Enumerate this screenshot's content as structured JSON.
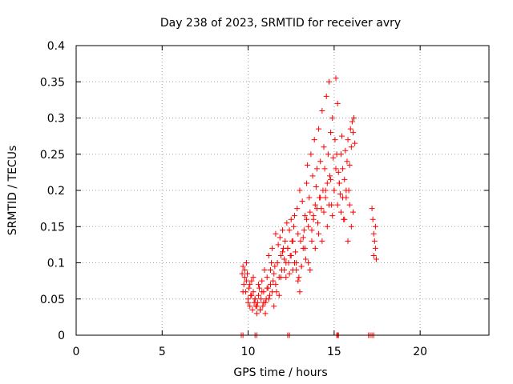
{
  "chart_data": {
    "type": "scatter",
    "title": "Day 238 of 2023, SRMTID for receiver avry",
    "xlabel": "GPS time / hours",
    "ylabel": "SRMTID / TECUs",
    "xlim": [
      0,
      24
    ],
    "ylim": [
      0,
      0.4
    ],
    "x_ticks": [
      0,
      5,
      10,
      15,
      20
    ],
    "x_tick_labels": [
      "0",
      "5",
      "10",
      "15",
      "20"
    ],
    "y_ticks": [
      0,
      0.05,
      0.1,
      0.15,
      0.2,
      0.25,
      0.3,
      0.35,
      0.4
    ],
    "y_tick_labels": [
      "0",
      "0.05",
      "0.1",
      "0.15",
      "0.2",
      "0.25",
      "0.3",
      "0.35",
      "0.4"
    ],
    "grid": true,
    "marker": "+",
    "color": "#ff0000",
    "series": [
      {
        "name": "SRMTID",
        "x": [
          9.65,
          9.7,
          9.75,
          9.8,
          9.85,
          9.9,
          9.95,
          10.0,
          10.05,
          10.1,
          10.15,
          10.2,
          10.25,
          10.3,
          10.35,
          10.4,
          10.45,
          10.5,
          10.55,
          10.6,
          10.65,
          10.7,
          10.75,
          10.8,
          10.85,
          10.9,
          10.95,
          11.0,
          11.05,
          11.1,
          11.15,
          11.2,
          11.25,
          11.3,
          11.35,
          11.4,
          11.45,
          11.5,
          11.55,
          11.6,
          11.65,
          11.7,
          11.75,
          11.8,
          11.85,
          11.9,
          11.95,
          12.0,
          12.05,
          12.1,
          12.15,
          12.2,
          12.25,
          12.3,
          12.35,
          12.4,
          12.45,
          12.5,
          12.55,
          12.6,
          12.65,
          12.7,
          12.75,
          12.8,
          12.85,
          12.9,
          12.95,
          13.0,
          13.05,
          13.1,
          13.15,
          13.2,
          13.25,
          13.3,
          13.35,
          13.4,
          13.45,
          13.5,
          13.55,
          13.6,
          13.65,
          13.7,
          13.75,
          13.8,
          13.85,
          13.9,
          13.95,
          14.0,
          14.05,
          14.1,
          14.15,
          14.2,
          14.25,
          14.3,
          14.35,
          14.4,
          14.45,
          14.5,
          14.55,
          14.6,
          14.65,
          14.7,
          14.75,
          14.8,
          14.85,
          14.9,
          14.95,
          15.0,
          15.05,
          15.1,
          15.15,
          15.2,
          15.25,
          15.3,
          15.35,
          15.4,
          15.45,
          15.5,
          15.55,
          15.6,
          15.65,
          15.7,
          15.75,
          15.8,
          15.85,
          15.9,
          15.95,
          16.0,
          16.05,
          16.1,
          16.15,
          16.2,
          17.2,
          17.25,
          17.3,
          17.35,
          17.4,
          17.45,
          9.7,
          9.8,
          9.9,
          10.0,
          10.1,
          10.2,
          10.3,
          10.4,
          10.5,
          10.6,
          10.7,
          10.8,
          10.9,
          11.0,
          11.1,
          11.2,
          11.3,
          11.4,
          11.5,
          11.6,
          11.7,
          11.8,
          11.9,
          12.0,
          12.1,
          12.2,
          12.3,
          12.4,
          12.5,
          12.6,
          12.7,
          12.8,
          12.9,
          13.0,
          13.1,
          13.2,
          13.3,
          13.4,
          13.5,
          13.6,
          13.7,
          13.8,
          13.9,
          14.0,
          14.1,
          14.2,
          14.3,
          14.4,
          14.5,
          14.6,
          14.7,
          14.8,
          14.9,
          15.0,
          15.1,
          15.2,
          15.3,
          15.4,
          15.5,
          15.6,
          15.7,
          15.8,
          15.9,
          16.0,
          16.1,
          17.3,
          17.4,
          9.6,
          9.7,
          10.4,
          10.5,
          12.3,
          12.4,
          15.15,
          15.2,
          15.25,
          17.0,
          17.1,
          17.2,
          17.3
        ],
        "y": [
          0.085,
          0.095,
          0.07,
          0.09,
          0.06,
          0.075,
          0.085,
          0.05,
          0.065,
          0.04,
          0.055,
          0.075,
          0.035,
          0.06,
          0.045,
          0.05,
          0.04,
          0.03,
          0.045,
          0.055,
          0.065,
          0.035,
          0.05,
          0.075,
          0.04,
          0.06,
          0.09,
          0.045,
          0.05,
          0.08,
          0.065,
          0.11,
          0.055,
          0.07,
          0.1,
          0.12,
          0.075,
          0.085,
          0.095,
          0.14,
          0.06,
          0.1,
          0.125,
          0.08,
          0.135,
          0.11,
          0.09,
          0.145,
          0.12,
          0.105,
          0.13,
          0.08,
          0.155,
          0.12,
          0.1,
          0.145,
          0.11,
          0.16,
          0.13,
          0.09,
          0.15,
          0.165,
          0.115,
          0.1,
          0.175,
          0.14,
          0.08,
          0.2,
          0.13,
          0.095,
          0.185,
          0.12,
          0.145,
          0.165,
          0.105,
          0.21,
          0.235,
          0.15,
          0.19,
          0.17,
          0.25,
          0.13,
          0.22,
          0.165,
          0.27,
          0.18,
          0.205,
          0.23,
          0.155,
          0.285,
          0.19,
          0.24,
          0.175,
          0.31,
          0.2,
          0.26,
          0.23,
          0.19,
          0.33,
          0.21,
          0.25,
          0.35,
          0.22,
          0.28,
          0.18,
          0.3,
          0.245,
          0.2,
          0.27,
          0.355,
          0.25,
          0.32,
          0.225,
          0.21,
          0.195,
          0.25,
          0.275,
          0.23,
          0.16,
          0.215,
          0.255,
          0.19,
          0.24,
          0.27,
          0.2,
          0.235,
          0.285,
          0.26,
          0.295,
          0.28,
          0.3,
          0.265,
          0.175,
          0.16,
          0.14,
          0.13,
          0.12,
          0.105,
          0.06,
          0.08,
          0.1,
          0.045,
          0.07,
          0.055,
          0.08,
          0.05,
          0.04,
          0.07,
          0.035,
          0.06,
          0.045,
          0.03,
          0.065,
          0.05,
          0.09,
          0.06,
          0.04,
          0.07,
          0.1,
          0.055,
          0.08,
          0.115,
          0.09,
          0.1,
          0.12,
          0.085,
          0.11,
          0.13,
          0.1,
          0.09,
          0.075,
          0.06,
          0.095,
          0.135,
          0.12,
          0.16,
          0.1,
          0.09,
          0.145,
          0.16,
          0.12,
          0.175,
          0.14,
          0.19,
          0.13,
          0.17,
          0.2,
          0.15,
          0.18,
          0.215,
          0.165,
          0.2,
          0.23,
          0.18,
          0.21,
          0.17,
          0.19,
          0.16,
          0.2,
          0.13,
          0.18,
          0.15,
          0.17,
          0.11,
          0.15,
          0.0,
          0.0,
          0.0,
          0.0,
          0.0,
          0.0,
          0.0,
          0.0,
          0.0,
          0.0,
          0.0,
          0.0,
          0.0
        ]
      }
    ]
  }
}
